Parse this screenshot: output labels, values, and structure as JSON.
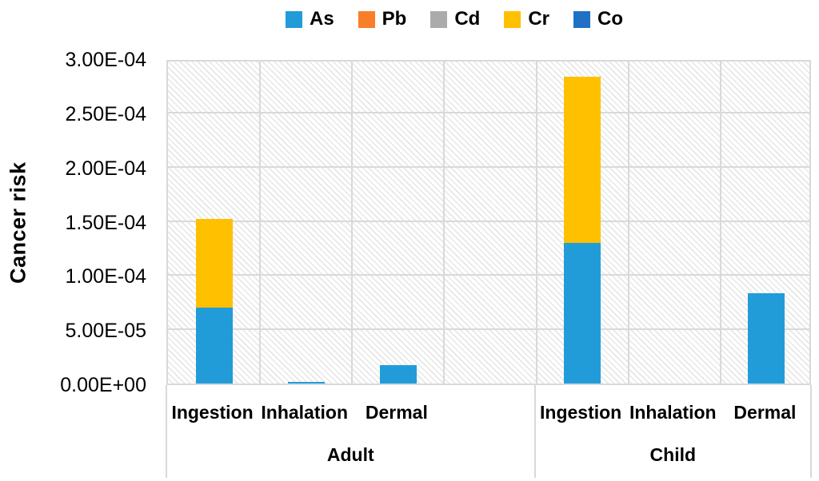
{
  "chart_data": {
    "type": "bar",
    "subtype": "stacked",
    "title": "",
    "xlabel": "",
    "ylabel": "Cancer risk",
    "ylim": [
      0,
      0.0003
    ],
    "grid": true,
    "gridline_color": "#D9D9D9",
    "plot_background": "light-diagonal-hatch",
    "legend_position": "top",
    "yticks": [
      {
        "value": 0.0,
        "label": "0.00E+00"
      },
      {
        "value": 5e-05,
        "label": "5.00E-05"
      },
      {
        "value": 0.0001,
        "label": "1.00E-04"
      },
      {
        "value": 0.00015,
        "label": "1.50E-04"
      },
      {
        "value": 0.0002,
        "label": "2.00E-04"
      },
      {
        "value": 0.00025,
        "label": "2.50E-04"
      },
      {
        "value": 0.0003,
        "label": "3.00E-04"
      }
    ],
    "slot_count": 7,
    "categories": [
      {
        "label": "Ingestion",
        "group": "Adult",
        "slot": 0
      },
      {
        "label": "Inhalation",
        "group": "Adult",
        "slot": 1
      },
      {
        "label": "Dermal",
        "group": "Adult",
        "slot": 2
      },
      {
        "label": "Ingestion",
        "group": "Child",
        "slot": 4
      },
      {
        "label": "Inhalation",
        "group": "Child",
        "slot": 5
      },
      {
        "label": "Dermal",
        "group": "Child",
        "slot": 6
      }
    ],
    "groups": [
      {
        "label": "Adult",
        "slot_start": 0,
        "slot_end": 4
      },
      {
        "label": "Child",
        "slot_start": 4,
        "slot_end": 7
      }
    ],
    "series": [
      {
        "name": "As",
        "color": "#219CD9",
        "values": [
          7e-05,
          1.5e-06,
          1.7e-05,
          0.00013,
          0,
          8.3e-05
        ]
      },
      {
        "name": "Pb",
        "color": "#F97E29",
        "values": [
          0,
          0,
          0,
          0,
          0,
          0
        ]
      },
      {
        "name": "Cd",
        "color": "#ABABAB",
        "values": [
          0,
          0,
          0,
          0,
          0,
          0
        ]
      },
      {
        "name": "Cr",
        "color": "#FFC000",
        "values": [
          8.2e-05,
          0,
          0,
          0.000153,
          0,
          0
        ]
      },
      {
        "name": "Co",
        "color": "#2071C5",
        "values": [
          0,
          0,
          0,
          0,
          0,
          0
        ]
      }
    ]
  }
}
